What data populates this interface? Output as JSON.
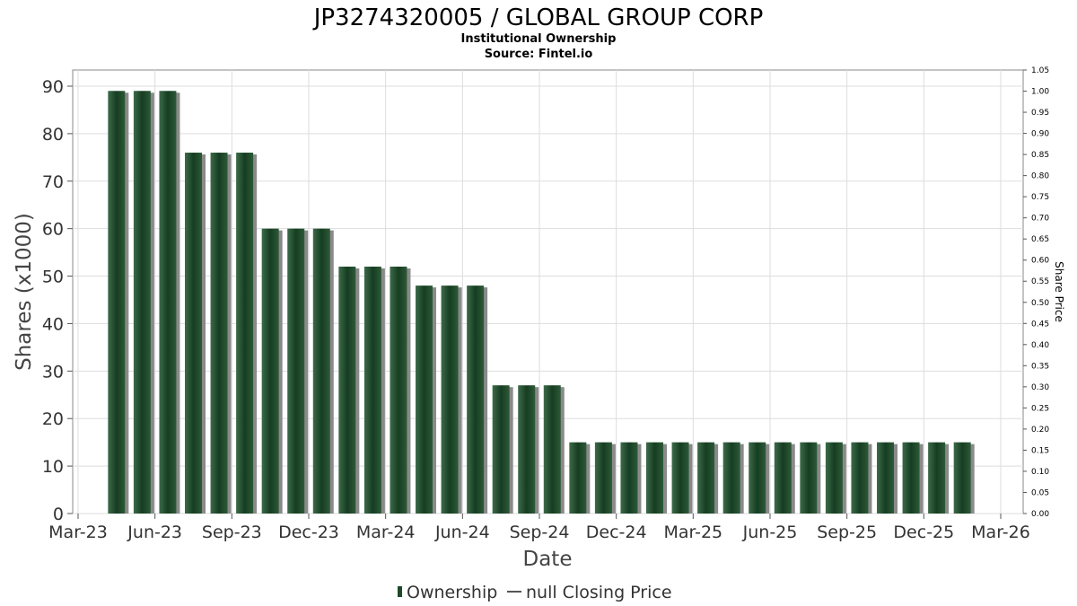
{
  "chart_data": {
    "type": "bar",
    "title": "JP3274320005 / GLOBAL GROUP CORP",
    "subtitle": "Institutional Ownership",
    "source": "Source: Fintel.io",
    "xlabel": "Date",
    "ylabel": "Shares (x1000)",
    "y2label": "Share Price",
    "ylim": [
      0,
      93.4
    ],
    "y2lim": [
      0,
      1.05
    ],
    "yticks": [
      0,
      10,
      20,
      30,
      40,
      50,
      60,
      70,
      80,
      90
    ],
    "y2ticks": [
      "0.00",
      "0.05",
      "0.10",
      "0.15",
      "0.20",
      "0.25",
      "0.30",
      "0.35",
      "0.40",
      "0.45",
      "0.50",
      "0.55",
      "0.60",
      "0.65",
      "0.70",
      "0.75",
      "0.80",
      "0.85",
      "0.90",
      "0.95",
      "1.00",
      "1.05"
    ],
    "xticks": [
      "Mar-23",
      "Jun-23",
      "Sep-23",
      "Dec-23",
      "Mar-24",
      "Jun-24",
      "Sep-24",
      "Dec-24",
      "Mar-25",
      "Jun-25",
      "Sep-25",
      "Dec-25",
      "Mar-26"
    ],
    "x_start_month": "2023-03",
    "bar_month_offsets": [
      1.5,
      2.5,
      3.5,
      4.5,
      5.5,
      6.5,
      7.5,
      8.5,
      9.5,
      10.5,
      11.5,
      12.5,
      13.5,
      14.5,
      15.5,
      16.5,
      17.5,
      18.5,
      19.5,
      20.5,
      21.5,
      22.5,
      23.5,
      24.5,
      25.5,
      26.5,
      27.5,
      28.5,
      29.5,
      30.5,
      31.5,
      32.5,
      33.5,
      34.5
    ],
    "series": [
      {
        "name": "Ownership",
        "color": "#1d4a2a",
        "values": [
          89,
          89,
          89,
          76,
          76,
          76,
          60,
          60,
          60,
          52,
          52,
          52,
          48,
          48,
          48,
          27,
          27,
          27,
          15,
          15,
          15,
          15,
          15,
          15,
          15,
          15,
          15,
          15,
          15,
          15,
          15,
          15,
          15,
          15
        ]
      },
      {
        "name": "null Closing Price",
        "color": "#555555",
        "values": []
      }
    ],
    "legend": [
      "Ownership",
      "null Closing Price"
    ],
    "legend_position": "bottom-center",
    "grid": true
  }
}
